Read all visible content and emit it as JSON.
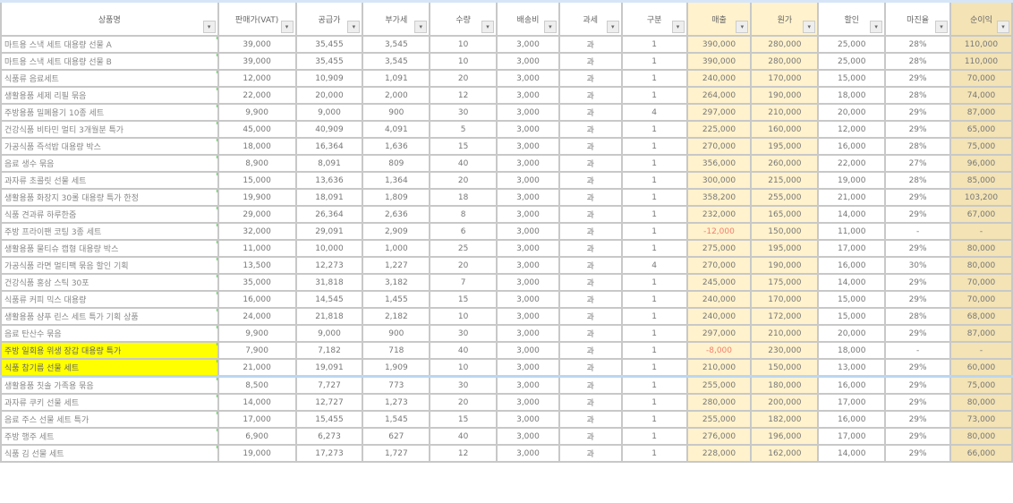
{
  "columns": [
    "상품명",
    "판매가(VAT)",
    "공급가",
    "부가세",
    "수량",
    "배송비",
    "과세",
    "구분",
    "매출",
    "원가",
    "할인",
    "마진율",
    "순이익"
  ],
  "rows": [
    {
      "c": [
        "마트용 스낵 세트 대용량 선물 A",
        "39,000",
        "35,455",
        "3,545",
        "10",
        "3,000",
        "과",
        "1",
        "390,000",
        "280,000",
        "25,000",
        "28%",
        "110,000"
      ]
    },
    {
      "c": [
        "마트용 스낵 세트 대용량 선물 B",
        "39,000",
        "35,455",
        "3,545",
        "10",
        "3,000",
        "과",
        "1",
        "390,000",
        "280,000",
        "25,000",
        "28%",
        "110,000"
      ]
    },
    {
      "c": [
        "식품류 음료세트",
        "12,000",
        "10,909",
        "1,091",
        "20",
        "3,000",
        "과",
        "1",
        "240,000",
        "170,000",
        "15,000",
        "29%",
        "70,000"
      ]
    },
    {
      "c": [
        "생활용품 세제 리필 묶음",
        "22,000",
        "20,000",
        "2,000",
        "12",
        "3,000",
        "과",
        "1",
        "264,000",
        "190,000",
        "18,000",
        "28%",
        "74,000"
      ]
    },
    {
      "c": [
        "주방용품 밀폐용기 10종 세트",
        "9,900",
        "9,000",
        "900",
        "30",
        "3,000",
        "과",
        "4",
        "297,000",
        "210,000",
        "20,000",
        "29%",
        "87,000"
      ]
    },
    {
      "c": [
        "건강식품 비타민 멀티 3개월분 특가",
        "45,000",
        "40,909",
        "4,091",
        "5",
        "3,000",
        "과",
        "1",
        "225,000",
        "160,000",
        "12,000",
        "29%",
        "65,000"
      ]
    },
    {
      "c": [
        "가공식품 즉석밥 대용량 박스",
        "18,000",
        "16,364",
        "1,636",
        "15",
        "3,000",
        "과",
        "1",
        "270,000",
        "195,000",
        "16,000",
        "28%",
        "75,000"
      ]
    },
    {
      "c": [
        "음료 생수 묶음",
        "8,900",
        "8,091",
        "809",
        "40",
        "3,000",
        "과",
        "1",
        "356,000",
        "260,000",
        "22,000",
        "27%",
        "96,000"
      ]
    },
    {
      "c": [
        "과자류 초콜릿 선물 세트",
        "15,000",
        "13,636",
        "1,364",
        "20",
        "3,000",
        "과",
        "1",
        "300,000",
        "215,000",
        "19,000",
        "28%",
        "85,000"
      ]
    },
    {
      "c": [
        "생활용품 화장지 30롤 대용량 특가 한정",
        "19,900",
        "18,091",
        "1,809",
        "18",
        "3,000",
        "과",
        "1",
        "358,200",
        "255,000",
        "21,000",
        "29%",
        "103,200"
      ]
    },
    {
      "c": [
        "식품 견과류 하루한줌",
        "29,000",
        "26,364",
        "2,636",
        "8",
        "3,000",
        "과",
        "1",
        "232,000",
        "165,000",
        "14,000",
        "29%",
        "67,000"
      ]
    },
    {
      "c": [
        "주방 프라이팬 코팅 3종 세트",
        "32,000",
        "29,091",
        "2,909",
        "6",
        "3,000",
        "과",
        "1",
        "-12,000",
        "150,000",
        "11,000",
        "-",
        "-"
      ]
    },
    {
      "c": [
        "생활용품 물티슈 캡형 대용량 박스",
        "11,000",
        "10,000",
        "1,000",
        "25",
        "3,000",
        "과",
        "1",
        "275,000",
        "195,000",
        "17,000",
        "29%",
        "80,000"
      ]
    },
    {
      "c": [
        "가공식품 라면 멀티팩 묶음 할인 기획",
        "13,500",
        "12,273",
        "1,227",
        "20",
        "3,000",
        "과",
        "4",
        "270,000",
        "190,000",
        "16,000",
        "30%",
        "80,000"
      ]
    },
    {
      "c": [
        "건강식품 홍삼 스틱 30포",
        "35,000",
        "31,818",
        "3,182",
        "7",
        "3,000",
        "과",
        "1",
        "245,000",
        "175,000",
        "14,000",
        "29%",
        "70,000"
      ]
    },
    {
      "c": [
        "식품류 커피 믹스 대용량",
        "16,000",
        "14,545",
        "1,455",
        "15",
        "3,000",
        "과",
        "1",
        "240,000",
        "170,000",
        "15,000",
        "29%",
        "70,000"
      ]
    },
    {
      "c": [
        "생활용품 샴푸 린스 세트 특가 기획 상품",
        "24,000",
        "21,818",
        "2,182",
        "10",
        "3,000",
        "과",
        "1",
        "240,000",
        "172,000",
        "15,000",
        "28%",
        "68,000"
      ]
    },
    {
      "c": [
        "음료 탄산수 묶음",
        "9,900",
        "9,000",
        "900",
        "30",
        "3,000",
        "과",
        "1",
        "297,000",
        "210,000",
        "20,000",
        "29%",
        "87,000"
      ]
    },
    {
      "c": [
        "주방 일회용 위생 장갑 대용량 특가",
        "7,900",
        "7,182",
        "718",
        "40",
        "3,000",
        "과",
        "1",
        "-8,000",
        "230,000",
        "18,000",
        "-",
        "-"
      ],
      "hl": true
    },
    {
      "c": [
        "식품 참기름 선물 세트",
        "21,000",
        "19,091",
        "1,909",
        "10",
        "3,000",
        "과",
        "1",
        "210,000",
        "150,000",
        "13,000",
        "29%",
        "60,000"
      ],
      "hl": true
    },
    {
      "c": [
        "생활용품 칫솔 가족용 묶음",
        "8,500",
        "7,727",
        "773",
        "30",
        "3,000",
        "과",
        "1",
        "255,000",
        "180,000",
        "16,000",
        "29%",
        "75,000"
      ],
      "sep": true
    },
    {
      "c": [
        "과자류 쿠키 선물 세트",
        "14,000",
        "12,727",
        "1,273",
        "20",
        "3,000",
        "과",
        "1",
        "280,000",
        "200,000",
        "17,000",
        "29%",
        "80,000"
      ]
    },
    {
      "c": [
        "음료 주스 선물 세트 특가",
        "17,000",
        "15,455",
        "1,545",
        "15",
        "3,000",
        "과",
        "1",
        "255,000",
        "182,000",
        "16,000",
        "29%",
        "73,000"
      ]
    },
    {
      "c": [
        "주방 행주 세트",
        "6,900",
        "6,273",
        "627",
        "40",
        "3,000",
        "과",
        "1",
        "276,000",
        "196,000",
        "17,000",
        "29%",
        "80,000"
      ]
    },
    {
      "c": [
        "식품 김 선물 세트",
        "19,000",
        "17,273",
        "1,727",
        "12",
        "3,000",
        "과",
        "1",
        "228,000",
        "162,000",
        "14,000",
        "29%",
        "66,000"
      ]
    }
  ],
  "highlight_color": "#ffff00"
}
